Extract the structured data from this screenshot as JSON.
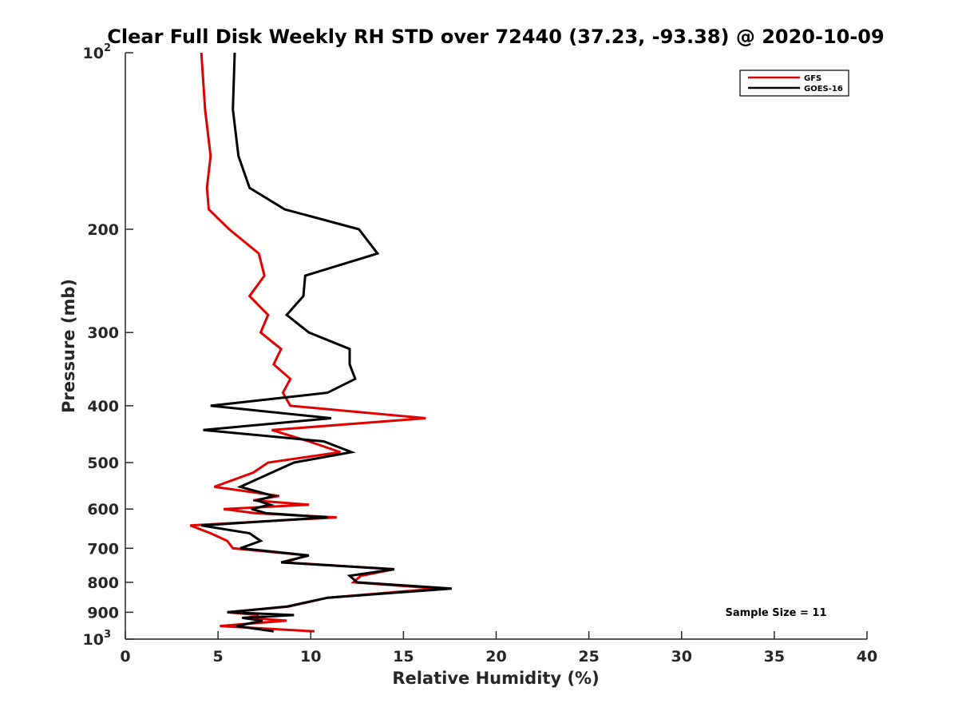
{
  "chart_data": {
    "type": "line",
    "title": "Clear Full Disk Weekly RH STD over 72440 (37.23, -93.38) @ 2020-10-09",
    "xlabel": "Relative Humidity (%)",
    "ylabel": "Pressure (mb)",
    "xlim": [
      0,
      40
    ],
    "ylim": [
      100,
      1000
    ],
    "y_scale": "log",
    "y_reversed": true,
    "grid": false,
    "legend_position": "top-right",
    "x_ticks": [
      "0",
      "5",
      "10",
      "15",
      "20",
      "25",
      "30",
      "35",
      "40"
    ],
    "y_ticks": [
      {
        "value": 100,
        "base": "10",
        "exp": "2"
      },
      {
        "value": 200,
        "label": "200"
      },
      {
        "value": 300,
        "label": "300"
      },
      {
        "value": 400,
        "label": "400"
      },
      {
        "value": 500,
        "label": "500"
      },
      {
        "value": 600,
        "label": "600"
      },
      {
        "value": 700,
        "label": "700"
      },
      {
        "value": 800,
        "label": "800"
      },
      {
        "value": 900,
        "label": "900"
      },
      {
        "value": 1000,
        "base": "10",
        "exp": "3"
      }
    ],
    "annotation": "Sample Size = 11",
    "series": [
      {
        "name": "GFS",
        "color": "#e00000",
        "points": [
          [
            4.1,
            100
          ],
          [
            4.3,
            125
          ],
          [
            4.6,
            150
          ],
          [
            4.4,
            170
          ],
          [
            4.5,
            185
          ],
          [
            5.6,
            200
          ],
          [
            7.2,
            220
          ],
          [
            7.5,
            240
          ],
          [
            6.7,
            260
          ],
          [
            7.7,
            280
          ],
          [
            7.3,
            300
          ],
          [
            8.4,
            320
          ],
          [
            8.0,
            340
          ],
          [
            8.9,
            360
          ],
          [
            8.5,
            380
          ],
          [
            8.9,
            400
          ],
          [
            16.2,
            420
          ],
          [
            7.9,
            440
          ],
          [
            9.9,
            460
          ],
          [
            11.6,
            480
          ],
          [
            7.7,
            500
          ],
          [
            6.9,
            520
          ],
          [
            4.8,
            550
          ],
          [
            8.3,
            570
          ],
          [
            6.9,
            580
          ],
          [
            9.9,
            590
          ],
          [
            5.3,
            600
          ],
          [
            7.0,
            610
          ],
          [
            11.4,
            620
          ],
          [
            3.5,
            640
          ],
          [
            4.6,
            660
          ],
          [
            5.5,
            680
          ],
          [
            5.8,
            700
          ],
          [
            9.8,
            720
          ],
          [
            8.6,
            740
          ],
          [
            14.5,
            760
          ],
          [
            12.7,
            780
          ],
          [
            12.3,
            800
          ],
          [
            16.9,
            820
          ],
          [
            10.9,
            850
          ],
          [
            8.8,
            880
          ],
          [
            5.5,
            900
          ],
          [
            7.2,
            910
          ],
          [
            6.6,
            920
          ],
          [
            8.7,
            930
          ],
          [
            5.1,
            950
          ],
          [
            10.2,
            970
          ]
        ]
      },
      {
        "name": "GOES-16",
        "color": "#000000",
        "points": [
          [
            5.9,
            100
          ],
          [
            5.8,
            125
          ],
          [
            6.1,
            150
          ],
          [
            6.7,
            170
          ],
          [
            8.6,
            185
          ],
          [
            12.6,
            200
          ],
          [
            13.6,
            220
          ],
          [
            9.7,
            240
          ],
          [
            9.6,
            260
          ],
          [
            8.7,
            280
          ],
          [
            9.9,
            300
          ],
          [
            12.1,
            320
          ],
          [
            12.1,
            340
          ],
          [
            12.4,
            360
          ],
          [
            10.9,
            380
          ],
          [
            4.6,
            400
          ],
          [
            11.1,
            420
          ],
          [
            4.2,
            440
          ],
          [
            10.7,
            460
          ],
          [
            12.2,
            480
          ],
          [
            9.1,
            500
          ],
          [
            7.9,
            520
          ],
          [
            6.2,
            550
          ],
          [
            8.0,
            570
          ],
          [
            7.1,
            580
          ],
          [
            7.8,
            590
          ],
          [
            6.8,
            600
          ],
          [
            7.6,
            610
          ],
          [
            10.9,
            620
          ],
          [
            4.1,
            640
          ],
          [
            6.7,
            660
          ],
          [
            7.3,
            680
          ],
          [
            6.2,
            700
          ],
          [
            9.9,
            720
          ],
          [
            8.4,
            740
          ],
          [
            14.5,
            760
          ],
          [
            12.1,
            780
          ],
          [
            12.5,
            800
          ],
          [
            17.6,
            820
          ],
          [
            10.9,
            850
          ],
          [
            8.7,
            880
          ],
          [
            5.5,
            900
          ],
          [
            9.1,
            910
          ],
          [
            6.3,
            920
          ],
          [
            7.4,
            930
          ],
          [
            6.0,
            950
          ],
          [
            8.0,
            970
          ]
        ]
      }
    ]
  }
}
